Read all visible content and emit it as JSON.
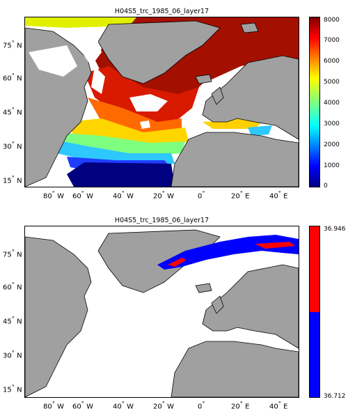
{
  "colors": {
    "land": "#a0a0a0",
    "ocean_masked": "#ffffff",
    "coast": "#000000",
    "low_band": "#0000ff",
    "high_band": "#ff0000"
  },
  "top_panel": {
    "title": "H04S5_trc_1985_06_layer17",
    "colormap": "jet",
    "colorbar_ticks": [
      "8000",
      "7000",
      "6000",
      "5000",
      "4000",
      "3000",
      "2000",
      "1000",
      "0"
    ],
    "colorbar_range": [
      0,
      8000
    ]
  },
  "bottom_panel": {
    "title": "H04S5_trc_1985_06_layer17",
    "colorbar_top_label": "36.946",
    "colorbar_bottom_label": "36.712"
  },
  "axes": {
    "lon_ticks": [
      {
        "deg": "80",
        "hem": "W"
      },
      {
        "deg": "60",
        "hem": "W"
      },
      {
        "deg": "40",
        "hem": "W"
      },
      {
        "deg": "20",
        "hem": "W"
      },
      {
        "deg": "0",
        "hem": ""
      },
      {
        "deg": "20",
        "hem": "E"
      },
      {
        "deg": "40",
        "hem": "E"
      }
    ],
    "lat_ticks": [
      {
        "deg": "75",
        "hem": "N"
      },
      {
        "deg": "60",
        "hem": "N"
      },
      {
        "deg": "45",
        "hem": "N"
      },
      {
        "deg": "30",
        "hem": "N"
      },
      {
        "deg": "15",
        "hem": "N"
      }
    ],
    "lon_range": [
      -90,
      50
    ],
    "lat_range": [
      10,
      86
    ]
  }
}
